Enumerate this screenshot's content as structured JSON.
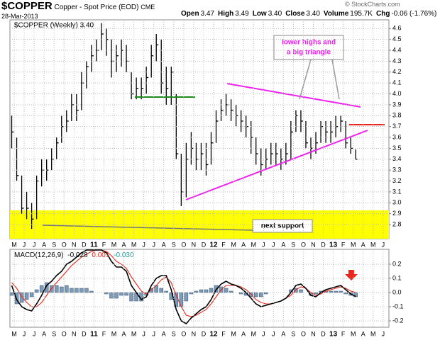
{
  "chart_data": [
    {
      "type": "ohlc",
      "title": "$COPPER",
      "subtitle": "Copper - Spot Price (EOD)",
      "exchange": "CME",
      "date": "28-Mar-2013",
      "quote": [
        {
          "label": "Open",
          "value": "3.47"
        },
        {
          "label": "High",
          "value": "3.49"
        },
        {
          "label": "Low",
          "value": "3.40"
        },
        {
          "label": "Close",
          "value": "3.40"
        },
        {
          "label": "Volume",
          "value": "195.7K"
        },
        {
          "label": "Chg",
          "value": "-0.06 (-1.76%)"
        }
      ],
      "credit": "© StockCharts.com",
      "legend": "$COPPER (Weekly) 3.40",
      "annotations": [
        "lower highs and",
        "a big triangle",
        "next support"
      ],
      "categories": [
        "M",
        null,
        "J",
        null,
        "J",
        null,
        "A",
        null,
        "S",
        null,
        "O",
        null,
        "N",
        null,
        "D",
        null,
        "11",
        null,
        "F",
        null,
        "M",
        null,
        "A",
        null,
        "M",
        null,
        "J",
        null,
        "J",
        null,
        "A",
        null,
        "S",
        null,
        "O",
        null,
        "N",
        null,
        "D",
        null,
        "12",
        null,
        "F",
        null,
        "M",
        null,
        "A",
        null,
        "M",
        null,
        "J",
        null,
        "J",
        null,
        "A",
        null,
        "S",
        null,
        "O",
        null,
        "N",
        null,
        "D",
        null,
        "13",
        null,
        "F",
        null,
        "M",
        null,
        "A",
        null,
        "M",
        null,
        "J",
        null
      ],
      "high": [
        3.8,
        3.6,
        3.25,
        3.1,
        3.0,
        3.25,
        3.4,
        3.4,
        3.5,
        3.6,
        3.8,
        3.85,
        4.0,
        4.0,
        4.2,
        4.3,
        4.45,
        4.5,
        4.65,
        4.6,
        4.5,
        4.45,
        4.5,
        4.45,
        4.2,
        4.15,
        4.15,
        4.25,
        4.45,
        4.55,
        4.5,
        4.25,
        4.25,
        4.0,
        3.45,
        3.55,
        3.65,
        3.55,
        3.55,
        3.55,
        3.65,
        3.85,
        3.95,
        4.0,
        3.95,
        3.9,
        3.85,
        3.8,
        3.75,
        3.6,
        3.5,
        3.5,
        3.55,
        3.55,
        3.5,
        3.55,
        3.75,
        3.85,
        3.85,
        3.75,
        3.6,
        3.65,
        3.75,
        3.75,
        3.75,
        3.8,
        3.8,
        3.75,
        3.6,
        3.49,
        null,
        null,
        null,
        null,
        null,
        null
      ],
      "low": [
        3.5,
        3.2,
        2.9,
        2.85,
        2.76,
        2.85,
        3.15,
        3.2,
        3.3,
        3.4,
        3.55,
        3.65,
        3.75,
        3.75,
        3.85,
        4.05,
        4.2,
        4.3,
        4.4,
        4.35,
        4.15,
        4.2,
        4.25,
        4.2,
        3.95,
        3.95,
        3.95,
        4.0,
        4.15,
        4.3,
        4.0,
        3.9,
        3.9,
        3.4,
        2.97,
        3.05,
        3.35,
        3.3,
        3.3,
        3.25,
        3.35,
        3.55,
        3.75,
        3.8,
        3.75,
        3.7,
        3.65,
        3.6,
        3.45,
        3.35,
        3.25,
        3.3,
        3.35,
        3.35,
        3.3,
        3.35,
        3.4,
        3.65,
        3.65,
        3.5,
        3.4,
        3.45,
        3.55,
        3.55,
        3.55,
        3.6,
        3.65,
        3.5,
        3.45,
        3.4,
        null,
        null,
        null,
        null,
        null,
        null
      ],
      "close": [
        3.65,
        3.25,
        2.95,
        2.95,
        2.85,
        3.2,
        3.3,
        3.3,
        3.4,
        3.55,
        3.7,
        3.75,
        3.9,
        3.85,
        4.1,
        4.25,
        4.35,
        4.4,
        4.55,
        4.5,
        4.3,
        4.35,
        4.4,
        4.3,
        4.0,
        4.05,
        4.05,
        4.15,
        4.35,
        4.45,
        4.1,
        4.05,
        4.2,
        3.45,
        3.1,
        3.4,
        3.5,
        3.4,
        3.45,
        3.35,
        3.55,
        3.75,
        3.85,
        3.9,
        3.85,
        3.8,
        3.75,
        3.7,
        3.6,
        3.45,
        3.35,
        3.4,
        3.45,
        3.45,
        3.4,
        3.45,
        3.65,
        3.8,
        3.75,
        3.55,
        3.5,
        3.55,
        3.7,
        3.65,
        3.65,
        3.7,
        3.75,
        3.55,
        3.5,
        3.4,
        null,
        null,
        null,
        null,
        null,
        null
      ],
      "color": "#000000",
      "ylim": [
        2.67,
        4.68
      ],
      "yticks": [
        2.8,
        2.9,
        {
          "value": 3.0,
          "label": "3.0"
        },
        3.1,
        3.2,
        3.3,
        3.4,
        3.5,
        3.6,
        3.7,
        3.8,
        3.9,
        {
          "value": 4.0,
          "label": "4.0"
        },
        4.1,
        4.2,
        4.3,
        4.4,
        4.5,
        4.6
      ],
      "grid": true
    },
    {
      "type": "macd",
      "title": "MACD(12,26,9)",
      "categories": [
        "M",
        null,
        "J",
        null,
        "J",
        null,
        "A",
        null,
        "S",
        null,
        "O",
        null,
        "N",
        null,
        "D",
        null,
        "11",
        null,
        "F",
        null,
        "M",
        null,
        "A",
        null,
        "M",
        null,
        "J",
        null,
        "J",
        null,
        "A",
        null,
        "S",
        null,
        "O",
        null,
        "N",
        null,
        "D",
        null,
        "12",
        null,
        "F",
        null,
        "M",
        null,
        "A",
        null,
        "M",
        null,
        "J",
        null,
        "J",
        null,
        "A",
        null,
        "S",
        null,
        "O",
        null,
        "N",
        null,
        "D",
        null,
        "13",
        null,
        "F",
        null,
        "M",
        null,
        "A",
        null,
        "M",
        null,
        "J",
        null
      ],
      "series": [
        {
          "color": "#000000",
          "readout": "-0.028",
          "values": [
            0.05,
            -0.05,
            -0.1,
            -0.12,
            -0.13,
            -0.08,
            -0.02,
            0.05,
            0.08,
            0.12,
            0.15,
            0.2,
            0.22,
            0.25,
            0.28,
            0.3,
            0.3,
            0.3,
            0.3,
            0.28,
            0.22,
            0.18,
            0.18,
            0.15,
            0.05,
            0.0,
            -0.05,
            -0.03,
            0.05,
            0.1,
            0.12,
            0.12,
            0.02,
            -0.12,
            -0.2,
            -0.22,
            -0.18,
            -0.15,
            -0.12,
            -0.1,
            -0.05,
            0.02,
            0.06,
            0.08,
            0.06,
            0.05,
            0.03,
            0.0,
            -0.04,
            -0.08,
            -0.1,
            -0.09,
            -0.08,
            -0.07,
            -0.06,
            -0.04,
            0.0,
            0.05,
            0.06,
            0.03,
            -0.02,
            -0.03,
            0.0,
            0.02,
            0.03,
            0.04,
            0.05,
            0.02,
            -0.01,
            -0.028,
            null,
            null,
            null,
            null,
            null,
            null
          ]
        },
        {
          "color": "#e8261c",
          "readout": "0.001",
          "values": [
            0.07,
            0.03,
            -0.03,
            -0.07,
            -0.1,
            -0.1,
            -0.07,
            -0.02,
            0.03,
            0.07,
            0.11,
            0.15,
            0.19,
            0.22,
            0.25,
            0.27,
            0.29,
            0.3,
            0.3,
            0.29,
            0.26,
            0.22,
            0.2,
            0.17,
            0.11,
            0.06,
            0.01,
            -0.01,
            0.02,
            0.05,
            0.09,
            0.11,
            0.07,
            -0.02,
            -0.1,
            -0.16,
            -0.17,
            -0.16,
            -0.14,
            -0.12,
            -0.08,
            -0.03,
            0.02,
            0.05,
            0.05,
            0.05,
            0.04,
            0.02,
            -0.01,
            -0.05,
            -0.07,
            -0.08,
            -0.08,
            -0.07,
            -0.06,
            -0.04,
            -0.02,
            0.02,
            0.04,
            0.03,
            0.0,
            -0.02,
            -0.01,
            0.01,
            0.02,
            0.03,
            0.04,
            0.03,
            0.01,
            0.001,
            null,
            null,
            null,
            null,
            null,
            null
          ]
        }
      ],
      "histogram": {
        "color": "#7d9bb8",
        "readout": "-0.030",
        "values": [
          -0.02,
          -0.08,
          -0.07,
          -0.05,
          -0.03,
          0.02,
          0.05,
          0.07,
          0.05,
          0.05,
          0.04,
          0.05,
          0.03,
          0.03,
          0.03,
          0.03,
          0.01,
          0,
          0,
          -0.01,
          -0.04,
          -0.04,
          -0.02,
          -0.02,
          -0.06,
          -0.06,
          -0.06,
          -0.02,
          0.03,
          0.05,
          0.03,
          0.01,
          -0.05,
          -0.1,
          -0.1,
          -0.06,
          -0.01,
          0.01,
          0.02,
          0.02,
          0.03,
          0.05,
          0.04,
          0.03,
          0.01,
          0,
          -0.01,
          -0.02,
          -0.03,
          -0.03,
          -0.03,
          -0.01,
          0,
          0,
          0,
          0,
          0.02,
          0.03,
          0.02,
          0,
          -0.02,
          -0.01,
          0.01,
          0.01,
          0.01,
          0.01,
          0.01,
          -0.01,
          -0.02,
          -0.03,
          null,
          null,
          null,
          null,
          null,
          null
        ]
      },
      "ylim": [
        -0.245,
        0.305
      ],
      "yticks": [
        -0.2,
        -0.1,
        {
          "value": 0.0,
          "label": "0.0"
        },
        0.1,
        0.2
      ],
      "grid": true
    }
  ]
}
